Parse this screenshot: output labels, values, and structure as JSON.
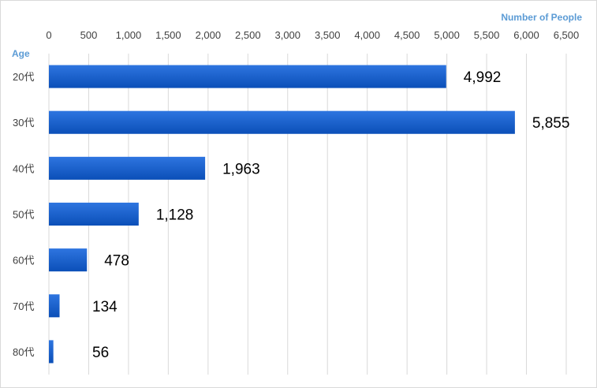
{
  "chart_data": {
    "type": "bar",
    "orientation": "horizontal",
    "categories": [
      "20代",
      "30代",
      "40代",
      "50代",
      "60代",
      "70代",
      "80代"
    ],
    "values": [
      4992,
      5855,
      1963,
      1128,
      478,
      134,
      56
    ],
    "value_labels": [
      "4,992",
      "5,855",
      "1,963",
      "1,128",
      "478",
      "134",
      "56"
    ],
    "xlabel": "Number of People",
    "ylabel": "Age",
    "xlim": [
      0,
      6500
    ],
    "x_ticks": [
      0,
      500,
      1000,
      1500,
      2000,
      2500,
      3000,
      3500,
      4000,
      4500,
      5000,
      5500,
      6000,
      6500
    ],
    "x_tick_labels": [
      "0",
      "500",
      "1,000",
      "1,500",
      "2,000",
      "2,500",
      "3,000",
      "3,500",
      "4,000",
      "4,500",
      "5,000",
      "5,500",
      "6,000",
      "6,500"
    ],
    "x_axis_position": "top",
    "grid": true,
    "legend": "none",
    "colors": {
      "bar_light": "#2e75e0",
      "bar_dark": "#0b4fb8",
      "grid": "#d9d9d9",
      "axis_title": "#5b9bd5",
      "tick": "#404040"
    }
  }
}
